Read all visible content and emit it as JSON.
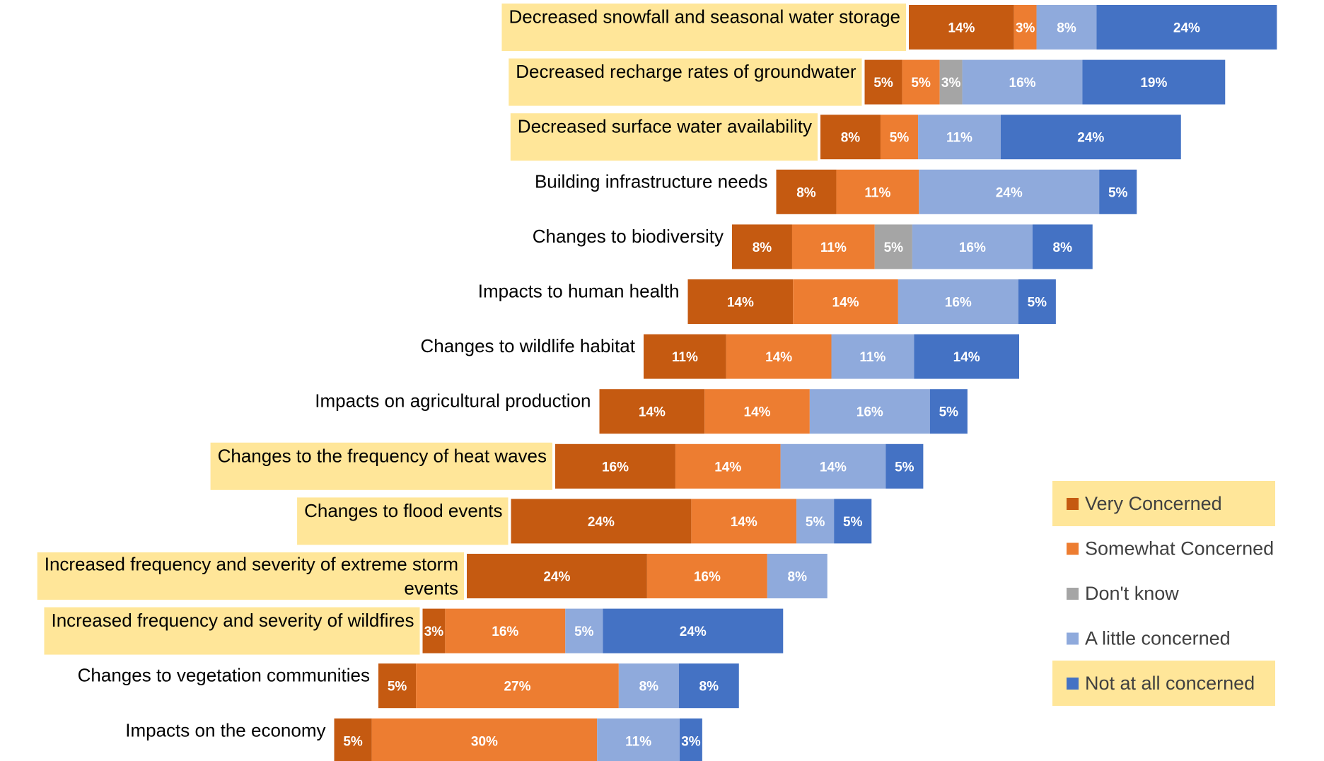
{
  "chart_data": {
    "type": "bar",
    "orientation": "horizontal",
    "stacked": true,
    "categories": [
      "Decreased snowfall and seasonal water storage",
      "Decreased recharge rates of groundwater",
      "Decreased surface water availability",
      "Building infrastructure needs",
      "Changes to biodiversity",
      "Impacts to human health",
      "Changes to wildlife habitat",
      "Impacts on agricultural production",
      "Changes to the frequency of heat waves",
      "Changes to flood events",
      "Increased frequency and severity of extreme storm events",
      "Increased frequency and severity of wildfires",
      "Changes to vegetation communities",
      "Impacts on the economy"
    ],
    "highlighted": [
      true,
      true,
      true,
      false,
      false,
      false,
      false,
      false,
      true,
      true,
      true,
      true,
      false,
      false
    ],
    "series": [
      {
        "name": "Very Concerned",
        "color": "#C55A11",
        "values": [
          14,
          5,
          8,
          8,
          8,
          14,
          11,
          14,
          16,
          24,
          24,
          3,
          5,
          5
        ]
      },
      {
        "name": "Somewhat Concerned",
        "color": "#ED7D31",
        "values": [
          3,
          5,
          5,
          11,
          11,
          14,
          14,
          14,
          14,
          14,
          16,
          16,
          27,
          30
        ]
      },
      {
        "name": "Don't know",
        "color": "#A5A5A5",
        "values": [
          0,
          3,
          0,
          0,
          5,
          0,
          0,
          0,
          0,
          0,
          0,
          0,
          0,
          0
        ]
      },
      {
        "name": "A little concerned",
        "color": "#8FAADC",
        "values": [
          8,
          16,
          11,
          24,
          16,
          16,
          11,
          16,
          14,
          5,
          8,
          5,
          8,
          11
        ]
      },
      {
        "name": "Not at all concerned",
        "color": "#4472C4",
        "values": [
          24,
          19,
          24,
          5,
          8,
          5,
          14,
          5,
          5,
          5,
          0,
          24,
          8,
          3
        ]
      }
    ],
    "legend_highlighted": [
      true,
      false,
      false,
      false,
      true
    ],
    "highlight_color": "#FFE699",
    "legend_position": "bottom-right",
    "grid": false,
    "title": "",
    "xlabel": "",
    "ylabel": ""
  }
}
